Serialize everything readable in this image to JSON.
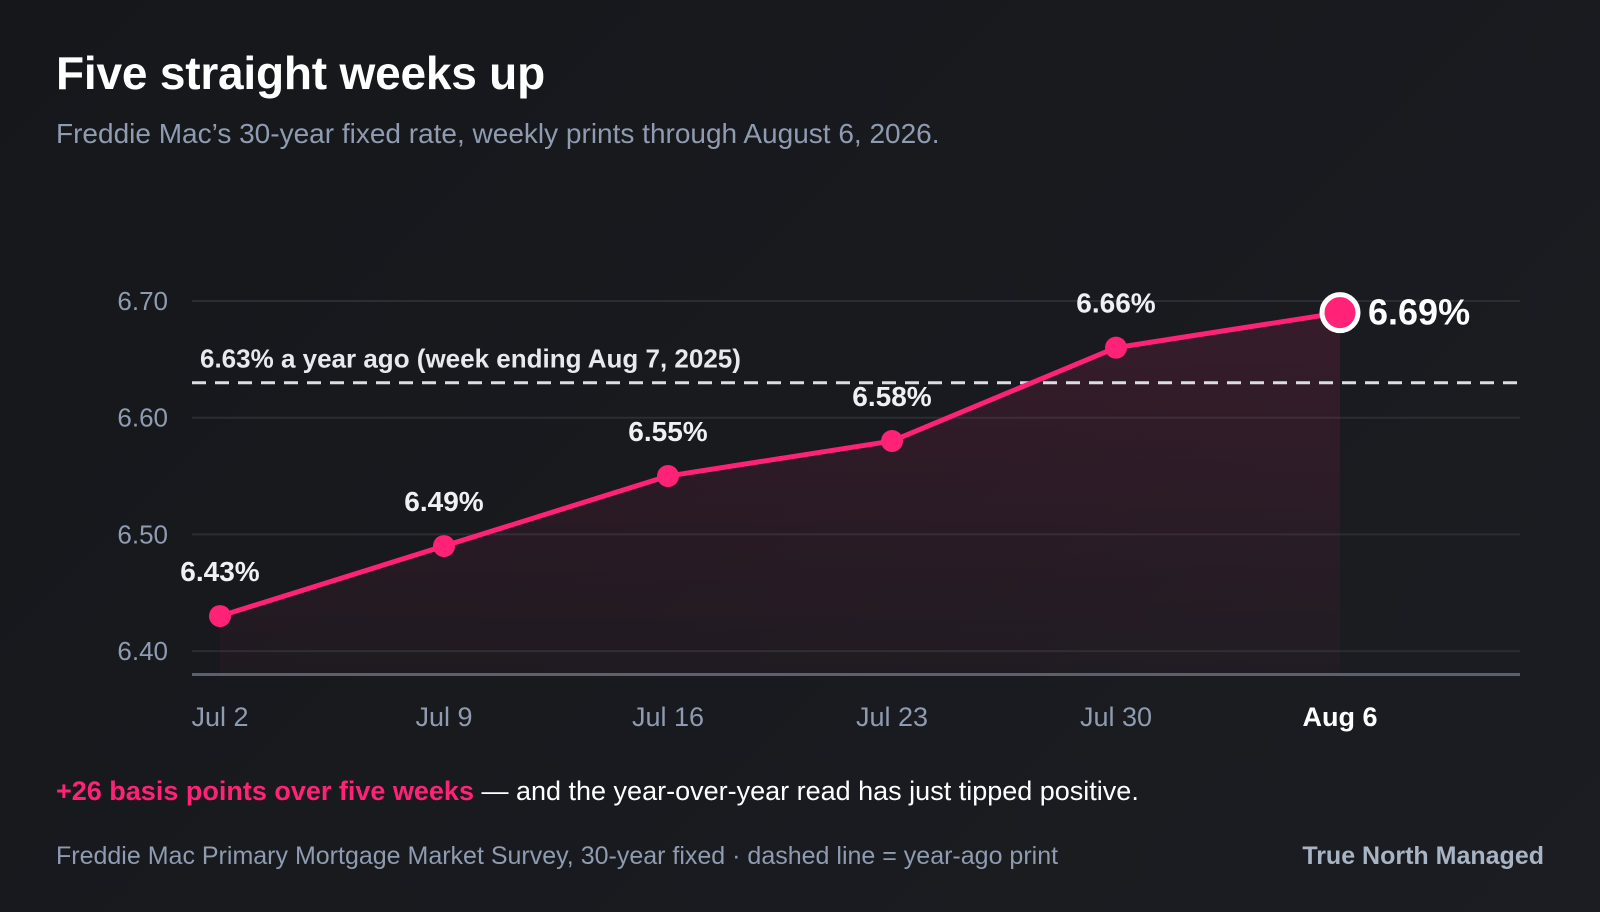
{
  "header": {
    "title": "Five straight weeks up",
    "subtitle": "Freddie Mac’s 30-year fixed rate, weekly prints through August 6, 2026."
  },
  "footer": {
    "takeaway_highlight": "+26 basis points over five weeks",
    "takeaway_rest": " — and the year-over-year read has just tipped positive.",
    "source": "Freddie Mac Primary Mortgage Market Survey, 30-year fixed · dashed line = year-ago print",
    "brand": "True North Managed"
  },
  "colors": {
    "accent": "#ff2277",
    "background": "#17181c",
    "text": "#ffffff",
    "muted": "#8f9bb0",
    "grid": "#2a2d33",
    "reference_line": "#d9dde4"
  },
  "chart_data": {
    "type": "line",
    "categories": [
      "Jul 2",
      "Jul 9",
      "Jul 16",
      "Jul 23",
      "Jul 30",
      "Aug 6"
    ],
    "series": [
      {
        "values": [
          6.43,
          6.49,
          6.55,
          6.58,
          6.66,
          6.69
        ]
      }
    ],
    "data_labels": [
      "6.43%",
      "6.49%",
      "6.55%",
      "6.58%",
      "6.66%",
      "6.69%"
    ],
    "highlighted_category": "Aug 6",
    "yticks": [
      "6.40",
      "6.50",
      "6.60",
      "6.70"
    ],
    "ylim": [
      6.38,
      6.7
    ],
    "grid": true,
    "reference_line": {
      "value": 6.63,
      "label": "6.63% a year ago (week ending Aug 7, 2025)",
      "style": "dashed"
    },
    "area_fill": true
  }
}
